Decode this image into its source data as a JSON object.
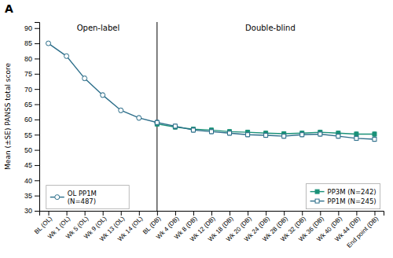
{
  "chart_data": {
    "type": "line",
    "title": "A",
    "y_label": "Mean (±SE) PANSS total score",
    "categories": [
      "BL (OL)",
      "Wk 1 (OL)",
      "Wk 5 (OL)",
      "Wk 9 (OL)",
      "Wk 13 (OL)",
      "Wk 14 (OL)",
      "BL (DB)",
      "Wk 4 (DB)",
      "Wk 8 (DB)",
      "Wk 12 (DB)",
      "Wk 18 (DB)",
      "Wk 20 (DB)",
      "Wk 24 (DB)",
      "Wk 28 (DB)",
      "Wk 32 (DB)",
      "Wk 36 (DB)",
      "Wk 40 (DB)",
      "Wk 44 (DB)",
      "End point (DB)"
    ],
    "ylim": [
      30,
      92
    ],
    "yticks": [
      30,
      35,
      40,
      45,
      50,
      55,
      60,
      65,
      70,
      75,
      80,
      85,
      90
    ],
    "grid": false,
    "annotations": [
      {
        "text": "Open-label"
      },
      {
        "text": "Double-blind"
      }
    ],
    "vlines": [
      "BL (DB)"
    ],
    "series": [
      {
        "name": "OL PP1M\n(N=487)",
        "color": "#2C6E8A",
        "marker": "circle-open",
        "legend": "lower left",
        "values": [
          85.0,
          80.8,
          73.5,
          68.0,
          63.0,
          60.5,
          59.0,
          null,
          null,
          null,
          null,
          null,
          null,
          null,
          null,
          null,
          null,
          null,
          null
        ],
        "errors": [
          0.6,
          0.6,
          0.7,
          0.7,
          0.7,
          0.7,
          0.7,
          null,
          null,
          null,
          null,
          null,
          null,
          null,
          null,
          null,
          null,
          null,
          null
        ]
      },
      {
        "name": "PP3M (N=242)",
        "color": "#1A9178",
        "marker": "square",
        "legend": "lower right",
        "values": [
          null,
          null,
          null,
          null,
          null,
          null,
          58.5,
          57.5,
          56.8,
          56.5,
          56.0,
          55.8,
          55.5,
          55.3,
          55.5,
          55.8,
          55.5,
          55.2,
          55.2
        ],
        "errors": [
          null,
          null,
          null,
          null,
          null,
          null,
          0.7,
          0.7,
          0.7,
          0.7,
          0.7,
          0.7,
          0.7,
          0.7,
          0.7,
          0.7,
          0.7,
          0.7,
          0.7
        ]
      },
      {
        "name": "PP1M (N=245)",
        "color": "#2C6E8A",
        "marker": "square-open",
        "legend": "lower right",
        "values": [
          null,
          null,
          null,
          null,
          null,
          null,
          59.0,
          57.8,
          56.5,
          56.0,
          55.5,
          55.0,
          54.8,
          54.5,
          55.0,
          55.2,
          54.5,
          53.8,
          53.5
        ],
        "errors": [
          null,
          null,
          null,
          null,
          null,
          null,
          0.7,
          0.7,
          0.7,
          0.7,
          0.7,
          0.7,
          0.7,
          0.7,
          0.7,
          0.7,
          0.7,
          0.7,
          0.7
        ]
      }
    ]
  }
}
